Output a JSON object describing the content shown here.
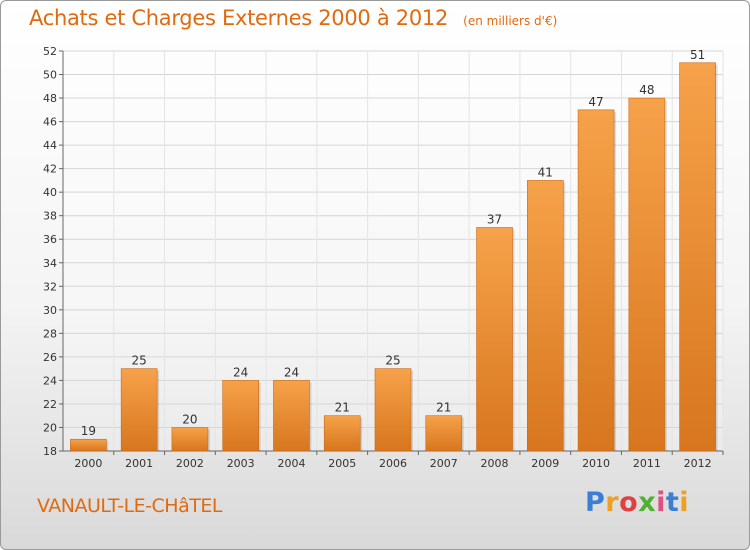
{
  "header": {
    "title": "Achats et Charges Externes 2000 à 2012",
    "unit": "(en milliers d'€)"
  },
  "footer": {
    "place": "VANAULT-LE-CHâTEL",
    "brand": "Proxiti",
    "brand_colors": [
      "#3a7fd4",
      "#f0a020",
      "#e04040",
      "#50b030",
      "#e05080",
      "#3a7fd4",
      "#f0a020"
    ]
  },
  "colors": {
    "bar_light": "#f6a24a",
    "bar_dark": "#d7761e",
    "accent": "#e06a10"
  },
  "chart_data": {
    "type": "bar",
    "categories": [
      "2000",
      "2001",
      "2002",
      "2003",
      "2004",
      "2005",
      "2006",
      "2007",
      "2008",
      "2009",
      "2010",
      "2011",
      "2012"
    ],
    "values": [
      19,
      25,
      20,
      24,
      24,
      21,
      25,
      21,
      37,
      41,
      47,
      48,
      51
    ],
    "ylim": [
      18,
      52
    ],
    "yticks": [
      18,
      20,
      22,
      24,
      26,
      28,
      30,
      32,
      34,
      36,
      38,
      40,
      42,
      44,
      46,
      48,
      50,
      52
    ],
    "grid": true,
    "title": "Achats et Charges Externes 2000 à 2012"
  }
}
